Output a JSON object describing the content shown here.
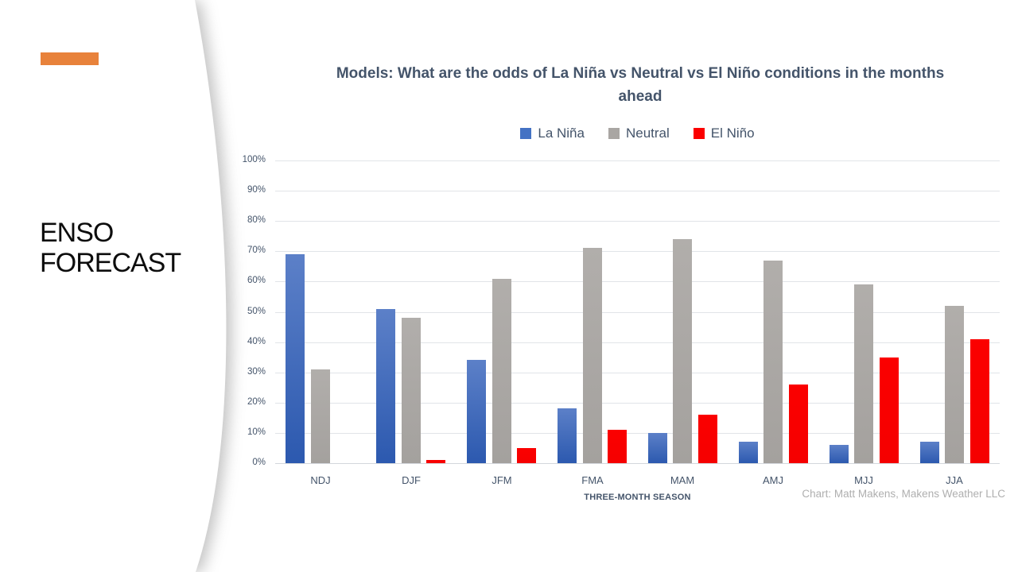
{
  "slide": {
    "side_title": "ENSO FORECAST",
    "accent_color": "#E8823B",
    "attribution": "Chart: Matt Makens, Makens Weather LLC"
  },
  "chart_data": {
    "type": "bar",
    "title": "Models: What are the odds of La Niña vs Neutral vs El Niño conditions in the months ahead",
    "xlabel": "THREE-MONTH SEASON",
    "ylabel": "",
    "ylim": [
      0,
      100
    ],
    "ytick_step": 10,
    "ytick_labels": [
      "0%",
      "10%",
      "20%",
      "30%",
      "40%",
      "50%",
      "60%",
      "70%",
      "80%",
      "90%",
      "100%"
    ],
    "grid": true,
    "legend_position": "top",
    "categories": [
      "NDJ",
      "DJF",
      "JFM",
      "FMA",
      "MAM",
      "AMJ",
      "MJJ",
      "JJA"
    ],
    "series": [
      {
        "name": "La Niña",
        "color": "#4472C4",
        "gradient_top": "#5C80C8",
        "gradient_bottom": "#2C59AF",
        "values": [
          69,
          51,
          34,
          18,
          10,
          7,
          6,
          7
        ]
      },
      {
        "name": "Neutral",
        "color": "#A9A6A3",
        "gradient_top": "#B1AEAB",
        "gradient_bottom": "#A4A19E",
        "values": [
          31,
          48,
          61,
          71,
          74,
          67,
          59,
          52
        ]
      },
      {
        "name": "El Niño",
        "color": "#FB0000",
        "gradient_top": "#FB0000",
        "gradient_bottom": "#F50000",
        "values": [
          0,
          1,
          5,
          11,
          16,
          26,
          35,
          41
        ]
      }
    ]
  }
}
